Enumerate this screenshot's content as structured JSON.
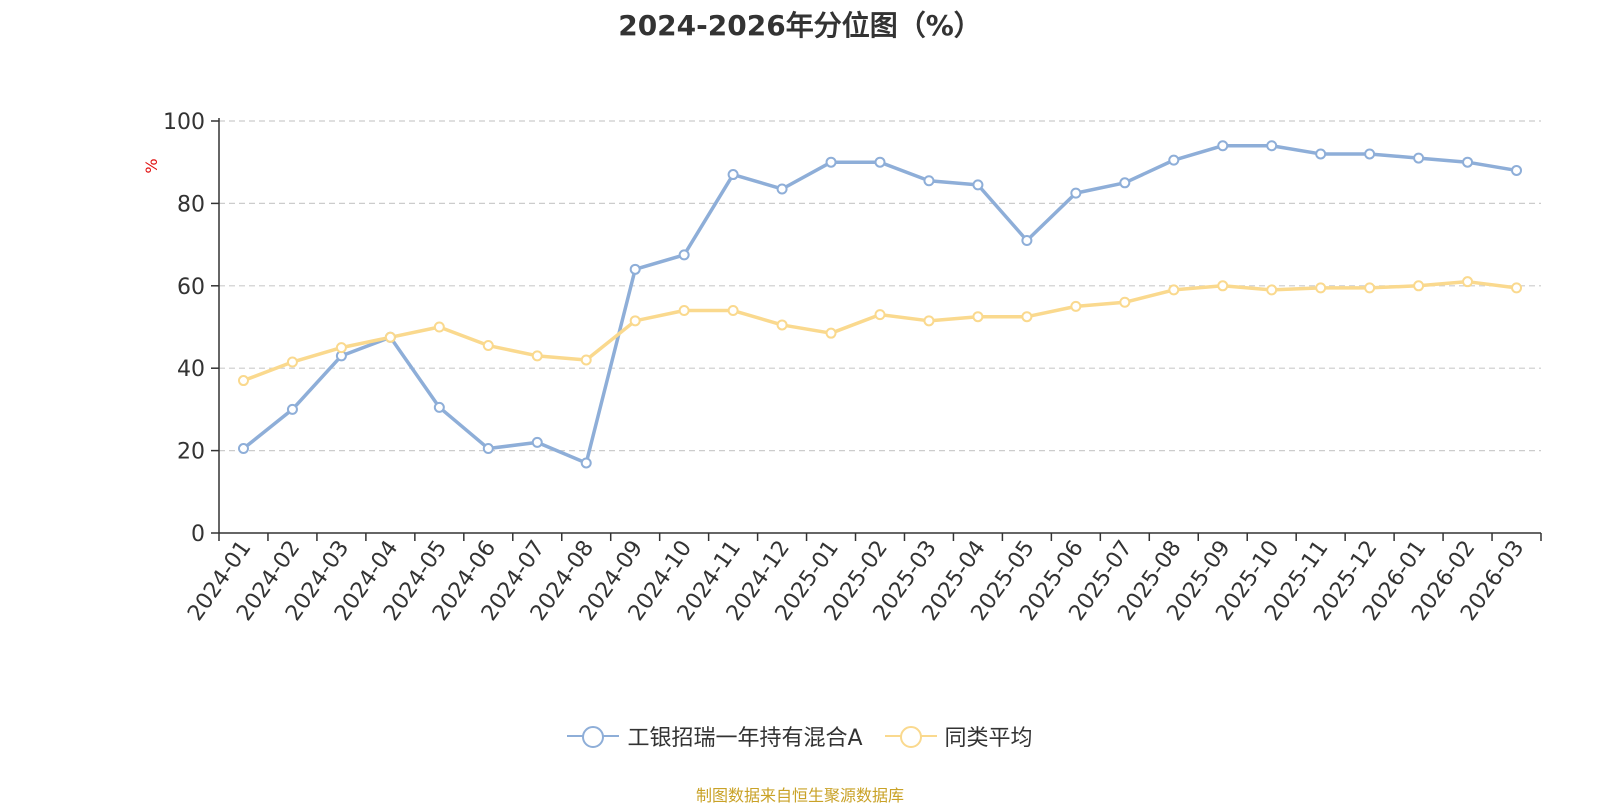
{
  "source_note": "制图数据来自恒生聚源数据库",
  "chart_data": {
    "type": "line",
    "title": "2024-2026年分位图（%）",
    "ylabel": "%",
    "xlabel": "",
    "ylim": [
      0,
      100
    ],
    "yticks": [
      0,
      20,
      40,
      60,
      80,
      100
    ],
    "grid": true,
    "legend_position": "bottom",
    "categories": [
      "2024-01",
      "2024-02",
      "2024-03",
      "2024-04",
      "2024-05",
      "2024-06",
      "2024-07",
      "2024-08",
      "2024-09",
      "2024-10",
      "2024-11",
      "2024-12",
      "2025-01",
      "2025-02",
      "2025-03",
      "2025-04",
      "2025-05",
      "2025-06",
      "2025-07",
      "2025-08",
      "2025-09",
      "2025-10",
      "2025-11",
      "2025-12",
      "2026-01",
      "2026-02",
      "2026-03"
    ],
    "series": [
      {
        "name": "工银招瑞一年持有混合A",
        "color": "#8eaed8",
        "values": [
          20.5,
          30,
          43,
          47.5,
          30.5,
          20.5,
          22,
          17,
          64,
          67.5,
          87,
          83.5,
          90,
          90,
          85.5,
          84.5,
          71,
          82.5,
          85,
          90.5,
          94,
          94,
          92,
          92,
          91,
          90,
          88
        ]
      },
      {
        "name": "同类平均",
        "color": "#fad98e",
        "values": [
          37,
          41.5,
          45,
          47.5,
          50,
          45.5,
          43,
          42,
          51.5,
          54,
          54,
          50.5,
          48.5,
          53,
          51.5,
          52.5,
          52.5,
          55,
          56,
          59,
          60,
          59,
          59.5,
          59.5,
          60,
          61,
          59.5
        ]
      }
    ]
  }
}
